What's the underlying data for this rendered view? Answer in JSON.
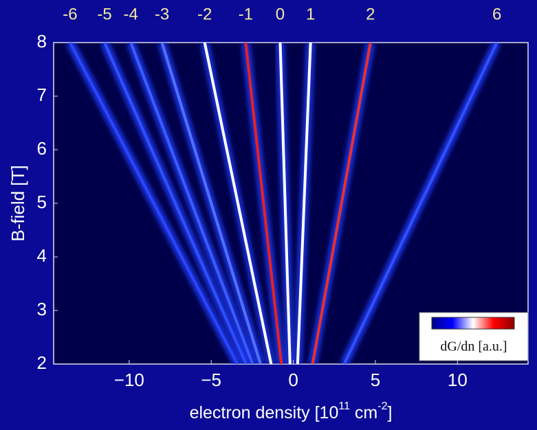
{
  "chart_data": {
    "type": "fan",
    "xlabel": "electron density [10",
    "xlabel_exp1": "11",
    "xlabel_mid": " cm",
    "xlabel_exp2": "-2",
    "xlabel_end": "]",
    "ylabel": "B-field [T]",
    "xlim": [
      -14.6,
      14.3
    ],
    "ylim": [
      2,
      8
    ],
    "xticks": [
      {
        "value": -10,
        "label": "−10"
      },
      {
        "value": -5,
        "label": "−5"
      },
      0,
      5,
      10
    ],
    "yticks": [
      2,
      3,
      4,
      5,
      6,
      7,
      8
    ],
    "top_axis": {
      "categories": [
        -6,
        -5,
        -4,
        -3,
        -2,
        -1,
        0,
        1,
        2,
        6
      ],
      "x": [
        -13.6,
        -11.5,
        -9.9,
        -8.0,
        -5.4,
        -2.9,
        -0.8,
        1.05,
        4.7,
        12.4
      ]
    },
    "line_colors": [
      "#2a45ff",
      "#3050ff",
      "#3a5cff",
      "#5070ff",
      "#ffffff",
      "#e82020",
      "#ffffff",
      "#ffffff",
      "#e83030",
      "#3050ff"
    ],
    "colorbar": {
      "label": "dG/dn [a.u.]",
      "colors": [
        "#00008b",
        "#0000ff",
        "#ffffff",
        "#ff0000",
        "#8b0000"
      ]
    }
  }
}
